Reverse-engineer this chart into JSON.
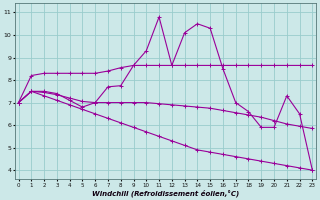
{
  "xlabel": "Windchill (Refroidissement éolien,°C)",
  "bg_color": "#cce8e8",
  "grid_color": "#99cccc",
  "line_color": "#990099",
  "x_ticks": [
    0,
    1,
    2,
    3,
    4,
    5,
    6,
    7,
    8,
    9,
    10,
    11,
    12,
    13,
    14,
    15,
    16,
    17,
    18,
    19,
    20,
    21,
    22,
    23
  ],
  "y_ticks": [
    4,
    5,
    6,
    7,
    8,
    9,
    10,
    11
  ],
  "ylim": [
    3.6,
    11.4
  ],
  "xlim": [
    -0.3,
    23.3
  ],
  "series1": [
    7.0,
    8.2,
    8.3,
    8.3,
    8.3,
    8.3,
    8.3,
    8.4,
    8.55,
    8.65,
    8.65,
    8.65,
    8.65,
    8.65,
    8.65,
    8.65,
    8.65,
    8.65,
    8.65,
    8.65,
    8.65,
    8.65,
    8.65,
    8.65
  ],
  "series2": [
    7.0,
    7.5,
    7.5,
    7.4,
    7.1,
    6.8,
    7.0,
    7.7,
    7.75,
    8.65,
    9.3,
    10.8,
    8.65,
    10.1,
    10.5,
    10.3,
    8.5,
    7.0,
    6.6,
    5.9,
    5.9,
    7.3,
    6.5,
    4.0
  ],
  "series3": [
    7.0,
    7.5,
    7.45,
    7.35,
    7.2,
    7.05,
    7.0,
    7.0,
    7.0,
    7.0,
    7.0,
    6.95,
    6.9,
    6.85,
    6.8,
    6.75,
    6.65,
    6.55,
    6.45,
    6.35,
    6.2,
    6.05,
    5.95,
    5.85
  ],
  "series4": [
    7.0,
    7.5,
    7.3,
    7.1,
    6.9,
    6.7,
    6.5,
    6.3,
    6.1,
    5.9,
    5.7,
    5.5,
    5.3,
    5.1,
    4.9,
    4.8,
    4.7,
    4.6,
    4.5,
    4.4,
    4.3,
    4.2,
    4.1,
    4.0
  ]
}
